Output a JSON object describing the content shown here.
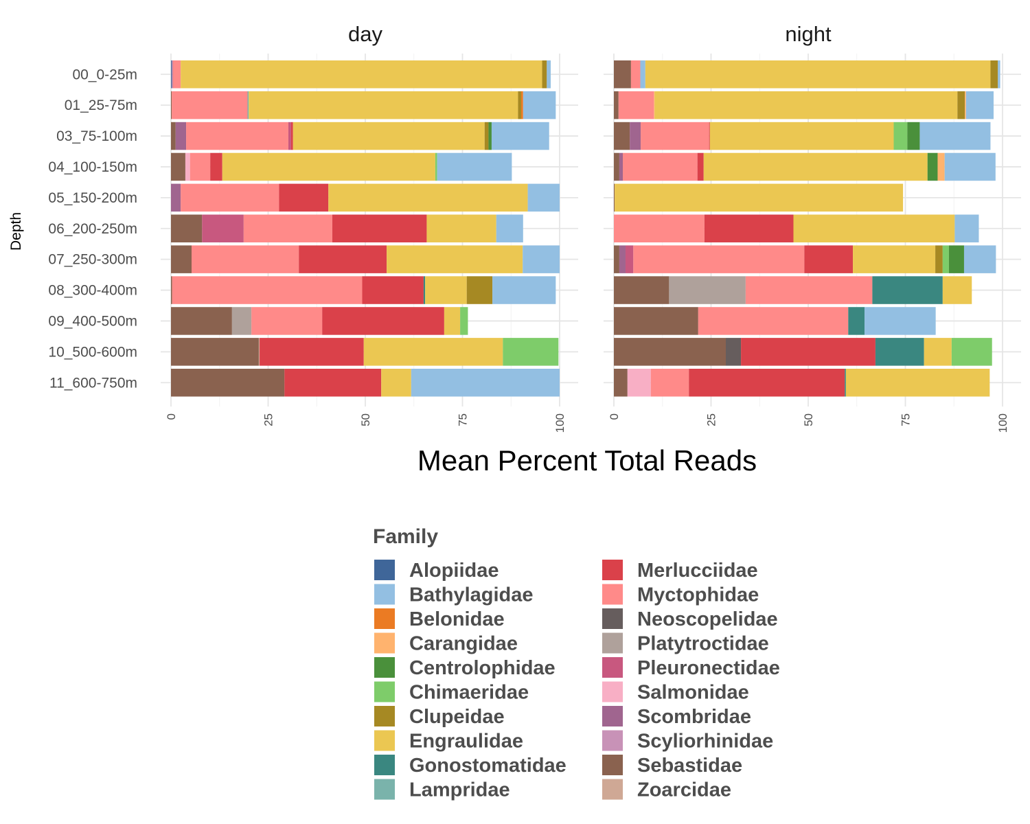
{
  "chart_data": {
    "type": "bar",
    "orientation": "horizontal",
    "stacked": true,
    "xlabel": "Mean Percent Total Reads",
    "ylabel": "Depth",
    "xlim": [
      0,
      100
    ],
    "x_ticks": [
      0,
      25,
      50,
      75,
      100
    ],
    "grid": true,
    "legend_position": "bottom",
    "legend_title": "Family",
    "categories": [
      "00_0-25m",
      "01_25-75m",
      "03_75-100m",
      "04_100-150m",
      "05_150-200m",
      "06_200-250m",
      "07_250-300m",
      "08_300-400m",
      "09_400-500m",
      "10_500-600m",
      "11_600-750m"
    ],
    "families": [
      {
        "name": "Alopiidae",
        "color": "#3F6699"
      },
      {
        "name": "Bathylagidae",
        "color": "#93BFE2"
      },
      {
        "name": "Belonidae",
        "color": "#EB7B23"
      },
      {
        "name": "Carangidae",
        "color": "#FFB36E"
      },
      {
        "name": "Centrolophidae",
        "color": "#4A903B"
      },
      {
        "name": "Chimaeridae",
        "color": "#7ECC6A"
      },
      {
        "name": "Clupeidae",
        "color": "#A68923"
      },
      {
        "name": "Engraulidae",
        "color": "#EBC752"
      },
      {
        "name": "Gonostomatidae",
        "color": "#3A8780"
      },
      {
        "name": "Lampridae",
        "color": "#7AB3AB"
      },
      {
        "name": "Merlucciidae",
        "color": "#DA414A"
      },
      {
        "name": "Myctophidae",
        "color": "#FF8A89"
      },
      {
        "name": "Neoscopelidae",
        "color": "#665D5D"
      },
      {
        "name": "Platytroctidae",
        "color": "#AFA19B"
      },
      {
        "name": "Pleuronectidae",
        "color": "#C8587F"
      },
      {
        "name": "Salmonidae",
        "color": "#F8AFC5"
      },
      {
        "name": "Scombridae",
        "color": "#A0658F"
      },
      {
        "name": "Scyliorhinidae",
        "color": "#C892B7"
      },
      {
        "name": "Sebastidae",
        "color": "#8A624F"
      },
      {
        "name": "Zoarcidae",
        "color": "#CFA895"
      }
    ],
    "facets": [
      {
        "title": "day",
        "rows": [
          [
            [
              "Alopiidae",
              0.2
            ],
            [
              "Scyliorhinidae",
              0.1
            ],
            [
              "Scombridae",
              0.2
            ],
            [
              "Myctophidae",
              2.0
            ],
            [
              "Engraulidae",
              93.0
            ],
            [
              "Clupeidae",
              1.2
            ],
            [
              "Bathylagidae",
              1.0
            ]
          ],
          [
            [
              "Sebastidae",
              0.2
            ],
            [
              "Myctophidae",
              19.5
            ],
            [
              "Lampridae",
              0.3
            ],
            [
              "Engraulidae",
              69.3
            ],
            [
              "Clupeidae",
              0.8
            ],
            [
              "Belonidae",
              0.5
            ],
            [
              "Bathylagidae",
              8.4
            ]
          ],
          [
            [
              "Sebastidae",
              1.2
            ],
            [
              "Scombridae",
              2.7
            ],
            [
              "Myctophidae",
              26.3
            ],
            [
              "Pleuronectidae",
              0.7
            ],
            [
              "Merlucciidae",
              0.5
            ],
            [
              "Engraulidae",
              49.3
            ],
            [
              "Clupeidae",
              1.0
            ],
            [
              "Centrolophidae",
              0.8
            ],
            [
              "Bathylagidae",
              14.8
            ]
          ],
          [
            [
              "Sebastidae",
              3.7
            ],
            [
              "Salmonidae",
              1.2
            ],
            [
              "Myctophidae",
              5.2
            ],
            [
              "Merlucciidae",
              3.1
            ],
            [
              "Engraulidae",
              54.8
            ],
            [
              "Chimaeridae",
              0.5
            ],
            [
              "Bathylagidae",
              19.2
            ]
          ],
          [
            [
              "Scombridae",
              2.5
            ],
            [
              "Myctophidae",
              25.3
            ],
            [
              "Merlucciidae",
              12.7
            ],
            [
              "Engraulidae",
              51.3
            ],
            [
              "Bathylagidae",
              8.2
            ]
          ],
          [
            [
              "Sebastidae",
              8.0
            ],
            [
              "Pleuronectidae",
              10.7
            ],
            [
              "Myctophidae",
              22.8
            ],
            [
              "Merlucciidae",
              24.3
            ],
            [
              "Engraulidae",
              17.9
            ],
            [
              "Bathylagidae",
              6.9
            ]
          ],
          [
            [
              "Sebastidae",
              5.3
            ],
            [
              "Myctophidae",
              27.6
            ],
            [
              "Merlucciidae",
              22.6
            ],
            [
              "Engraulidae",
              35.0
            ],
            [
              "Bathylagidae",
              9.5
            ]
          ],
          [
            [
              "Sebastidae",
              0.3
            ],
            [
              "Myctophidae",
              48.9
            ],
            [
              "Merlucciidae",
              15.8
            ],
            [
              "Gonostomatidae",
              0.4
            ],
            [
              "Engraulidae",
              10.7
            ],
            [
              "Clupeidae",
              6.6
            ],
            [
              "Bathylagidae",
              16.3
            ]
          ],
          [
            [
              "Sebastidae",
              15.7
            ],
            [
              "Platytroctidae",
              5.0
            ],
            [
              "Myctophidae",
              18.2
            ],
            [
              "Merlucciidae",
              31.4
            ],
            [
              "Engraulidae",
              4.1
            ],
            [
              "Chimaeridae",
              2.0
            ]
          ],
          [
            [
              "Sebastidae",
              22.6
            ],
            [
              "Zoarcidae",
              0.2
            ],
            [
              "Merlucciidae",
              26.8
            ],
            [
              "Engraulidae",
              35.8
            ],
            [
              "Chimaeridae",
              14.3
            ]
          ],
          [
            [
              "Sebastidae",
              29.2
            ],
            [
              "Merlucciidae",
              24.9
            ],
            [
              "Engraulidae",
              7.7
            ],
            [
              "Bathylagidae",
              38.2
            ]
          ]
        ]
      },
      {
        "title": "night",
        "rows": [
          [
            [
              "Sebastidae",
              4.4
            ],
            [
              "Myctophidae",
              2.4
            ],
            [
              "Bathylagidae",
              1.3
            ],
            [
              "Engraulidae",
              88.8
            ],
            [
              "Clupeidae",
              1.9
            ],
            [
              "Bathylagidae",
              0.6
            ]
          ],
          [
            [
              "Sebastidae",
              1.2
            ],
            [
              "Myctophidae",
              9.1
            ],
            [
              "Carangidae",
              0.2
            ],
            [
              "Engraulidae",
              77.9
            ],
            [
              "Clupeidae",
              1.9
            ],
            [
              "Carangidae",
              0.3
            ],
            [
              "Bathylagidae",
              7.1
            ]
          ],
          [
            [
              "Sebastidae",
              4.1
            ],
            [
              "Scombridae",
              2.8
            ],
            [
              "Myctophidae",
              17.6
            ],
            [
              "Merlucciidae",
              0.2
            ],
            [
              "Engraulidae",
              47.3
            ],
            [
              "Chimaeridae",
              3.5
            ],
            [
              "Centrolophidae",
              3.2
            ],
            [
              "Bathylagidae",
              18.2
            ]
          ],
          [
            [
              "Sebastidae",
              1.4
            ],
            [
              "Scombridae",
              0.9
            ],
            [
              "Myctophidae",
              19.2
            ],
            [
              "Merlucciidae",
              1.6
            ],
            [
              "Engraulidae",
              57.6
            ],
            [
              "Centrolophidae",
              2.6
            ],
            [
              "Carangidae",
              1.8
            ],
            [
              "Bathylagidae",
              13.1
            ]
          ],
          [
            [
              "Sebastidae",
              0.2
            ],
            [
              "Engraulidae",
              74.2
            ]
          ],
          [
            [
              "Myctophidae",
              23.3
            ],
            [
              "Merlucciidae",
              22.9
            ],
            [
              "Engraulidae",
              41.5
            ],
            [
              "Bathylagidae",
              6.2
            ]
          ],
          [
            [
              "Sebastidae",
              1.4
            ],
            [
              "Scombridae",
              1.6
            ],
            [
              "Pleuronectidae",
              2.0
            ],
            [
              "Myctophidae",
              44.0
            ],
            [
              "Merlucciidae",
              12.5
            ],
            [
              "Engraulidae",
              21.2
            ],
            [
              "Clupeidae",
              1.9
            ],
            [
              "Chimaeridae",
              1.6
            ],
            [
              "Centrolophidae",
              3.9
            ],
            [
              "Bathylagidae",
              8.2
            ]
          ],
          [
            [
              "Sebastidae",
              14.2
            ],
            [
              "Platytroctidae",
              19.7
            ],
            [
              "Myctophidae",
              32.6
            ],
            [
              "Gonostomatidae",
              18.1
            ],
            [
              "Engraulidae",
              7.5
            ]
          ],
          [
            [
              "Sebastidae",
              21.7
            ],
            [
              "Myctophidae",
              38.6
            ],
            [
              "Gonostomatidae",
              4.2
            ],
            [
              "Bathylagidae",
              18.3
            ]
          ],
          [
            [
              "Sebastidae",
              28.8
            ],
            [
              "Neoscopelidae",
              3.9
            ],
            [
              "Merlucciidae",
              34.6
            ],
            [
              "Gonostomatidae",
              12.5
            ],
            [
              "Engraulidae",
              7.1
            ],
            [
              "Chimaeridae",
              10.4
            ]
          ],
          [
            [
              "Sebastidae",
              3.5
            ],
            [
              "Salmonidae",
              6.0
            ],
            [
              "Myctophidae",
              9.8
            ],
            [
              "Merlucciidae",
              40.1
            ],
            [
              "Gonostomatidae",
              0.3
            ],
            [
              "Engraulidae",
              37.0
            ]
          ]
        ]
      }
    ]
  }
}
